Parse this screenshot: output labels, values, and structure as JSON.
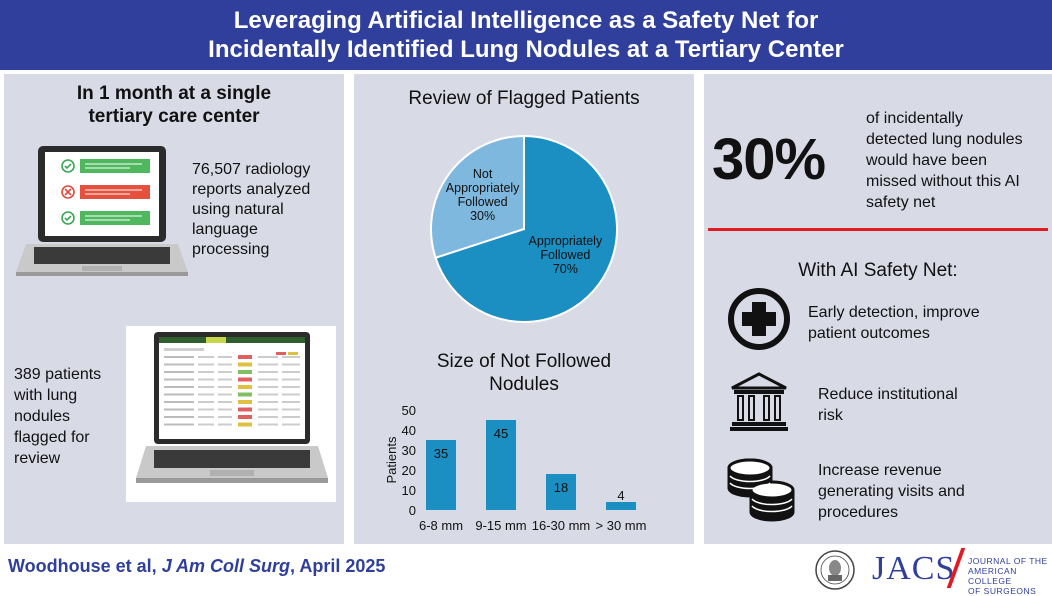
{
  "header": {
    "line1": "Leveraging Artificial Intelligence as a Safety Net for",
    "line2": "Incidentally Identified Lung Nodules at a Tertiary Center"
  },
  "left": {
    "heading_line1": "In 1 month at a single",
    "heading_line2": "tertiary care center",
    "reports": [
      "76,507 radiology",
      "reports analyzed",
      "using natural",
      "language",
      "processing"
    ],
    "patients": [
      "389 patients",
      "with lung",
      "nodules",
      "flagged for",
      "review"
    ]
  },
  "middle": {
    "pie_title": "Review of Flagged Patients",
    "bar_title_line1": "Size of Not Followed",
    "bar_title_line2": "Nodules"
  },
  "chart_data": [
    {
      "type": "pie",
      "title": "Review of Flagged Patients",
      "slices": [
        {
          "label": "Appropriately Followed",
          "label_lines": [
            "Appropriately",
            "Followed",
            "70%"
          ],
          "value": 70,
          "color": "#1b8ec2"
        },
        {
          "label": "Not Appropriately Followed",
          "label_lines": [
            "Not",
            "Appropriately",
            "Followed",
            "30%"
          ],
          "value": 30,
          "color": "#7fb8de"
        }
      ]
    },
    {
      "type": "bar",
      "title": "Size of Not Followed Nodules",
      "ylabel": "Patients",
      "categories": [
        "6-8 mm",
        "9-15 mm",
        "16-30 mm",
        "> 30 mm"
      ],
      "values": [
        35,
        45,
        18,
        4
      ],
      "ylim": [
        0,
        50
      ],
      "yticks": [
        "0",
        "10",
        "20",
        "30",
        "40",
        "50"
      ],
      "color": "#1b8ec2"
    }
  ],
  "right": {
    "big_stat": "30%",
    "stat_text": [
      "of incidentally",
      "detected lung nodules",
      "would have been",
      "missed without this AI",
      "safety net"
    ],
    "with_title": "With AI Safety Net:",
    "benefit1": [
      "Early detection,  improve",
      "patient outcomes"
    ],
    "benefit2": [
      "Reduce institutional",
      "risk"
    ],
    "benefit3": [
      "Increase revenue",
      "generating visits and",
      "procedures"
    ],
    "accent_color": "#e21b23"
  },
  "footer": {
    "authors": "Woodhouse et al, ",
    "journal": "J Am Coll Surg",
    "date": ", April 2025",
    "logo_text": "JACS",
    "logo_sub": [
      "JOURNAL OF THE",
      "AMERICAN COLLEGE",
      "OF SURGEONS"
    ]
  }
}
